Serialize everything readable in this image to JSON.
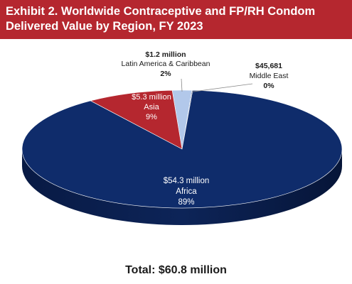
{
  "title": {
    "line1": "Exhibit 2. Worldwide Contraceptive and FP/RH Condom",
    "line2": "Delivered Value by Region, FY 2023"
  },
  "total_label": "Total: $60.8 million",
  "colors": {
    "banner": "#b5272f",
    "africa": "#0f2c6b",
    "asia": "#b5272f",
    "latin_america": "#b2c8ea",
    "middle_east": "#1f2f5a"
  },
  "chart_data": {
    "type": "pie",
    "style": "3d",
    "total": "Total: $60.8 million",
    "slices": [
      {
        "name": "Africa",
        "value_label": "$54.3 million",
        "value_millions": 54.3,
        "percent_label": "89%",
        "percent": 89
      },
      {
        "name": "Asia",
        "value_label": "$5.3 million",
        "value_millions": 5.3,
        "percent_label": "9%",
        "percent": 9
      },
      {
        "name": "Latin America & Caribbean",
        "value_label": "$1.2 million",
        "value_millions": 1.2,
        "percent_label": "2%",
        "percent": 2
      },
      {
        "name": "Middle East",
        "value_label": "$45,681",
        "value_millions": 0.045681,
        "percent_label": "0%",
        "percent": 0
      }
    ]
  }
}
